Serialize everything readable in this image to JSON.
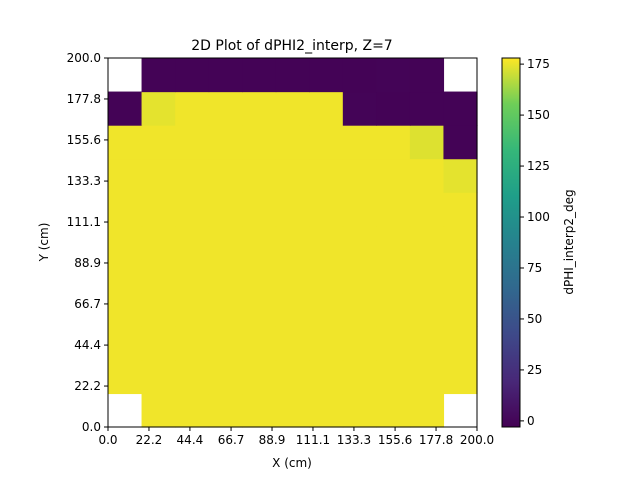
{
  "chart_data": {
    "type": "heatmap",
    "title": "2D Plot of dPHI2_interp, Z=7",
    "xlabel": "X (cm)",
    "ylabel": "Y (cm)",
    "xlim": [
      0,
      200
    ],
    "ylim": [
      0,
      200
    ],
    "x_ticks": [
      "0.0",
      "22.2",
      "44.4",
      "66.7",
      "88.9",
      "111.1",
      "133.3",
      "155.6",
      "177.8",
      "200.0"
    ],
    "y_ticks": [
      "0.0",
      "22.2",
      "44.4",
      "66.7",
      "88.9",
      "111.1",
      "133.3",
      "155.6",
      "177.8",
      "200.0"
    ],
    "grid": false,
    "colormap": "viridis",
    "colorbar": {
      "label": "dPHI_interp2_deg",
      "range": [
        -3,
        178
      ],
      "ticks": [
        0,
        25,
        50,
        75,
        100,
        125,
        150,
        175
      ]
    },
    "nx": 11,
    "ny": 11,
    "row_order": "bottom-to-top",
    "values": [
      [
        null,
        176,
        176,
        176,
        176,
        176,
        176,
        176,
        176,
        176,
        null
      ],
      [
        176,
        176,
        176,
        176,
        176,
        176,
        176,
        176,
        176,
        176,
        176
      ],
      [
        176,
        176,
        176,
        176,
        176,
        176,
        176,
        176,
        176,
        176,
        176
      ],
      [
        176,
        176,
        176,
        176,
        176,
        176,
        176,
        176,
        176,
        176,
        176
      ],
      [
        176,
        176,
        176,
        176,
        176,
        176,
        176,
        176,
        176,
        176,
        176
      ],
      [
        176,
        176,
        176,
        176,
        176,
        176,
        176,
        176,
        176,
        176,
        176
      ],
      [
        176,
        176,
        176,
        176,
        176,
        176,
        176,
        176,
        176,
        176,
        176
      ],
      [
        176,
        176,
        176,
        176,
        176,
        176,
        176,
        176,
        176,
        176,
        174
      ],
      [
        176,
        176,
        176,
        176,
        176,
        176,
        176,
        176,
        176,
        173,
        -2
      ],
      [
        -2,
        174,
        176,
        176,
        176,
        176,
        176,
        -1,
        -2,
        -2,
        -2
      ],
      [
        null,
        -2,
        -2,
        -2,
        -2,
        -2,
        -2,
        -2,
        -1,
        -2,
        null
      ]
    ]
  }
}
